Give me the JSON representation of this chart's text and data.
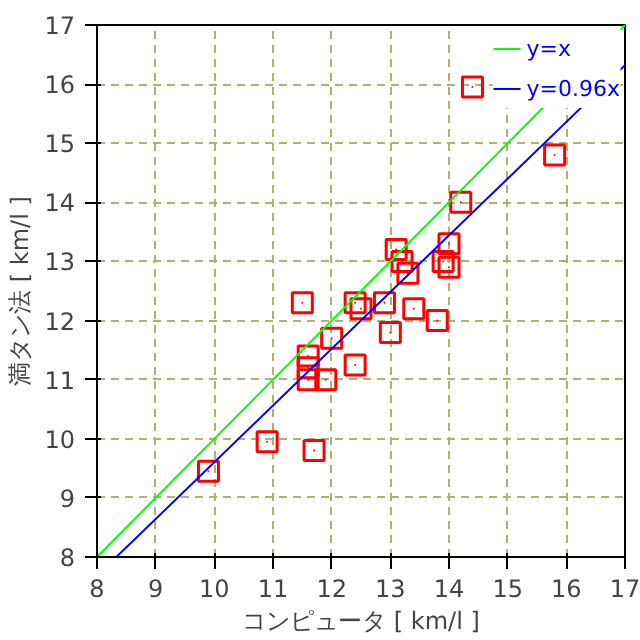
{
  "chart_data": {
    "type": "scatter",
    "xlabel": "コンピュータ [ km/l ]",
    "ylabel": "満タン法 [ km/l ]",
    "xlim": [
      8,
      17
    ],
    "ylim": [
      8,
      17
    ],
    "xticks": [
      8,
      9,
      10,
      11,
      12,
      13,
      14,
      15,
      16,
      17
    ],
    "yticks": [
      8,
      9,
      10,
      11,
      12,
      13,
      14,
      15,
      16,
      17
    ],
    "grid": true,
    "legend": "top right",
    "series": [
      {
        "color": "#ff0000",
        "marker": "square",
        "x": [
          9.9,
          10.9,
          11.7,
          11.5,
          11.6,
          11.6,
          11.6,
          11.9,
          12.0,
          12.4,
          12.4,
          12.5,
          12.9,
          13.0,
          13.4,
          13.8,
          13.1,
          13.2,
          13.3,
          13.9,
          14.0,
          14.0,
          14.2,
          14.4,
          15.8
        ],
        "values": [
          9.45,
          9.95,
          9.8,
          12.3,
          11.0,
          11.2,
          11.4,
          11.0,
          11.7,
          11.25,
          12.3,
          12.2,
          12.3,
          11.8,
          12.2,
          12.0,
          13.2,
          13.0,
          12.8,
          13.0,
          13.3,
          12.9,
          14.0,
          15.95,
          14.8
        ]
      },
      {
        "type": "line",
        "name": "y=x",
        "color": "#00ff00",
        "x": [
          8,
          17
        ],
        "values": [
          8,
          17
        ]
      },
      {
        "type": "line",
        "name": "y=0.96x",
        "color": "#0000ff",
        "x": [
          8.33,
          17
        ],
        "values": [
          8,
          16.32
        ]
      }
    ]
  }
}
